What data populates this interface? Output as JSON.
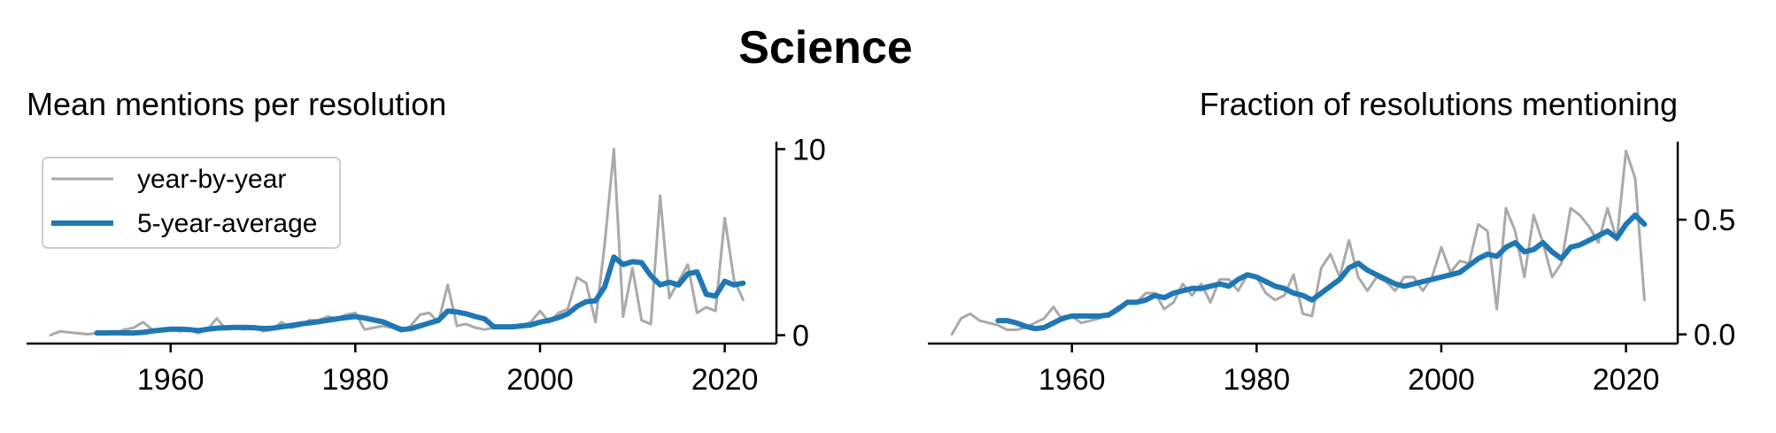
{
  "figure": {
    "title": "Science"
  },
  "chart_data": [
    {
      "type": "line",
      "title": "Mean mentions per resolution",
      "xlabel": "",
      "ylabel": "",
      "y_axis_side": "right",
      "xlim": [
        1944.4,
        2025.6
      ],
      "ylim": [
        -0.45,
        10.4
      ],
      "xticks": [
        1960,
        1980,
        2000,
        2020
      ],
      "yticks": [
        0,
        10
      ],
      "legend": {
        "placement": "upper-left",
        "entries": [
          "year-by-year",
          "5-year-average"
        ]
      },
      "series": [
        {
          "name": "year-by-year",
          "color": "#aaaaaa",
          "x": [
            1947,
            1948,
            1949,
            1950,
            1951,
            1952,
            1953,
            1954,
            1955,
            1956,
            1957,
            1958,
            1959,
            1960,
            1961,
            1962,
            1963,
            1964,
            1965,
            1966,
            1967,
            1968,
            1969,
            1970,
            1971,
            1972,
            1973,
            1974,
            1975,
            1976,
            1977,
            1978,
            1979,
            1980,
            1981,
            1982,
            1983,
            1984,
            1985,
            1986,
            1987,
            1988,
            1989,
            1990,
            1991,
            1992,
            1993,
            1994,
            1995,
            1996,
            1997,
            1998,
            1999,
            2000,
            2001,
            2002,
            2003,
            2004,
            2005,
            2006,
            2007,
            2008,
            2009,
            2010,
            2011,
            2012,
            2013,
            2014,
            2015,
            2016,
            2017,
            2018,
            2019,
            2020,
            2021,
            2022
          ],
          "y": [
            0.0,
            0.2,
            0.15,
            0.1,
            0.05,
            0.1,
            0.2,
            0.1,
            0.3,
            0.4,
            0.7,
            0.3,
            0.2,
            0.4,
            0.2,
            0.3,
            0.1,
            0.3,
            0.9,
            0.3,
            0.4,
            0.3,
            0.5,
            0.2,
            0.3,
            0.7,
            0.4,
            0.5,
            0.8,
            0.8,
            1.0,
            0.9,
            1.1,
            1.2,
            0.3,
            0.4,
            0.5,
            0.4,
            0.2,
            0.5,
            1.1,
            1.2,
            0.7,
            2.7,
            0.5,
            0.6,
            0.4,
            0.3,
            0.4,
            0.4,
            0.5,
            0.5,
            0.7,
            1.3,
            0.7,
            1.2,
            1.4,
            3.1,
            2.8,
            0.7,
            4.9,
            10.0,
            1.0,
            3.6,
            0.8,
            0.6,
            7.5,
            2.0,
            2.9,
            3.8,
            1.2,
            1.5,
            1.3,
            6.3,
            3.0,
            1.9
          ]
        },
        {
          "name": "5-year-average",
          "color": "#1f77b4",
          "x": [
            1952,
            1953,
            1954,
            1955,
            1956,
            1957,
            1958,
            1959,
            1960,
            1961,
            1962,
            1963,
            1964,
            1965,
            1966,
            1967,
            1968,
            1969,
            1970,
            1971,
            1972,
            1973,
            1974,
            1975,
            1976,
            1977,
            1978,
            1979,
            1980,
            1981,
            1982,
            1983,
            1984,
            1985,
            1986,
            1987,
            1988,
            1989,
            1990,
            1991,
            1992,
            1993,
            1994,
            1995,
            1996,
            1997,
            1998,
            1999,
            2000,
            2001,
            2002,
            2003,
            2004,
            2005,
            2006,
            2007,
            2008,
            2009,
            2010,
            2011,
            2012,
            2013,
            2014,
            2015,
            2016,
            2017,
            2018,
            2019,
            2020,
            2021,
            2022
          ],
          "y": [
            0.12,
            0.12,
            0.13,
            0.12,
            0.12,
            0.15,
            0.22,
            0.28,
            0.32,
            0.32,
            0.3,
            0.25,
            0.32,
            0.38,
            0.4,
            0.42,
            0.42,
            0.4,
            0.36,
            0.38,
            0.45,
            0.52,
            0.6,
            0.66,
            0.72,
            0.8,
            0.88,
            0.95,
            1.0,
            0.92,
            0.82,
            0.72,
            0.5,
            0.3,
            0.35,
            0.5,
            0.65,
            0.8,
            1.3,
            1.25,
            1.15,
            1.0,
            0.88,
            0.45,
            0.45,
            0.45,
            0.5,
            0.55,
            0.7,
            0.8,
            0.95,
            1.15,
            1.55,
            1.8,
            1.85,
            2.6,
            4.2,
            3.8,
            3.95,
            3.9,
            3.2,
            2.7,
            2.85,
            2.7,
            3.3,
            3.4,
            2.2,
            2.1,
            2.9,
            2.7,
            2.8
          ]
        }
      ]
    },
    {
      "type": "line",
      "title": "Fraction of resolutions mentioning",
      "xlabel": "",
      "ylabel": "",
      "y_axis_side": "right",
      "xlim": [
        1944.4,
        2025.6
      ],
      "ylim": [
        -0.04,
        0.84
      ],
      "xticks": [
        1960,
        1980,
        2000,
        2020
      ],
      "yticks": [
        0.0,
        0.5
      ],
      "series": [
        {
          "name": "year-by-year",
          "color": "#aaaaaa",
          "x": [
            1947,
            1948,
            1949,
            1950,
            1951,
            1952,
            1953,
            1954,
            1955,
            1956,
            1957,
            1958,
            1959,
            1960,
            1961,
            1962,
            1963,
            1964,
            1965,
            1966,
            1967,
            1968,
            1969,
            1970,
            1971,
            1972,
            1973,
            1974,
            1975,
            1976,
            1977,
            1978,
            1979,
            1980,
            1981,
            1982,
            1983,
            1984,
            1985,
            1986,
            1987,
            1988,
            1989,
            1990,
            1991,
            1992,
            1993,
            1994,
            1995,
            1996,
            1997,
            1998,
            1999,
            2000,
            2001,
            2002,
            2003,
            2004,
            2005,
            2006,
            2007,
            2008,
            2009,
            2010,
            2011,
            2012,
            2013,
            2014,
            2015,
            2016,
            2017,
            2018,
            2019,
            2020,
            2021,
            2022
          ],
          "y": [
            0.0,
            0.07,
            0.09,
            0.06,
            0.05,
            0.04,
            0.02,
            0.02,
            0.03,
            0.05,
            0.07,
            0.12,
            0.06,
            0.08,
            0.05,
            0.06,
            0.07,
            0.09,
            0.12,
            0.14,
            0.14,
            0.18,
            0.18,
            0.11,
            0.14,
            0.22,
            0.17,
            0.22,
            0.14,
            0.24,
            0.24,
            0.19,
            0.26,
            0.25,
            0.18,
            0.15,
            0.17,
            0.26,
            0.09,
            0.08,
            0.29,
            0.35,
            0.25,
            0.41,
            0.25,
            0.19,
            0.25,
            0.23,
            0.19,
            0.25,
            0.25,
            0.19,
            0.25,
            0.38,
            0.27,
            0.32,
            0.31,
            0.48,
            0.45,
            0.11,
            0.55,
            0.45,
            0.25,
            0.52,
            0.4,
            0.25,
            0.31,
            0.55,
            0.52,
            0.47,
            0.4,
            0.55,
            0.41,
            0.8,
            0.68,
            0.15
          ]
        },
        {
          "name": "5-year-average",
          "color": "#1f77b4",
          "x": [
            1952,
            1953,
            1954,
            1955,
            1956,
            1957,
            1958,
            1959,
            1960,
            1961,
            1962,
            1963,
            1964,
            1965,
            1966,
            1967,
            1968,
            1969,
            1970,
            1971,
            1972,
            1973,
            1974,
            1975,
            1976,
            1977,
            1978,
            1979,
            1980,
            1981,
            1982,
            1983,
            1984,
            1985,
            1986,
            1987,
            1988,
            1989,
            1990,
            1991,
            1992,
            1993,
            1994,
            1995,
            1996,
            1997,
            1998,
            1999,
            2000,
            2001,
            2002,
            2003,
            2004,
            2005,
            2006,
            2007,
            2008,
            2009,
            2010,
            2011,
            2012,
            2013,
            2014,
            2015,
            2016,
            2017,
            2018,
            2019,
            2020,
            2021,
            2022
          ],
          "y": [
            0.06,
            0.06,
            0.05,
            0.035,
            0.025,
            0.03,
            0.05,
            0.07,
            0.08,
            0.08,
            0.08,
            0.08,
            0.085,
            0.11,
            0.14,
            0.14,
            0.15,
            0.17,
            0.16,
            0.18,
            0.19,
            0.2,
            0.2,
            0.21,
            0.22,
            0.21,
            0.24,
            0.26,
            0.25,
            0.23,
            0.21,
            0.2,
            0.18,
            0.17,
            0.15,
            0.18,
            0.21,
            0.24,
            0.29,
            0.31,
            0.28,
            0.26,
            0.24,
            0.22,
            0.21,
            0.22,
            0.23,
            0.24,
            0.25,
            0.26,
            0.27,
            0.3,
            0.33,
            0.35,
            0.34,
            0.38,
            0.4,
            0.36,
            0.37,
            0.4,
            0.36,
            0.33,
            0.38,
            0.39,
            0.41,
            0.43,
            0.45,
            0.42,
            0.48,
            0.52,
            0.48
          ]
        }
      ]
    }
  ]
}
